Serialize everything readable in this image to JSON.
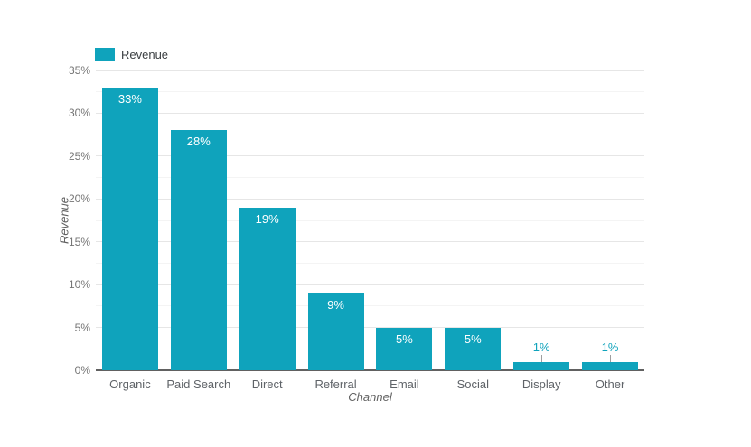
{
  "legend": {
    "series_label": "Revenue"
  },
  "axes": {
    "x_title": "Channel",
    "y_title": "Revenue",
    "y_tick_labels": [
      "0%",
      "5%",
      "10%",
      "15%",
      "20%",
      "25%",
      "30%",
      "35%"
    ]
  },
  "chart_data": {
    "type": "bar",
    "title": "",
    "categories": [
      "Organic",
      "Paid Search",
      "Direct",
      "Referral",
      "Email",
      "Social",
      "Display",
      "Other"
    ],
    "series": [
      {
        "name": "Revenue",
        "values": [
          33,
          28,
          19,
          9,
          5,
          5,
          1,
          1
        ],
        "labels": [
          "33%",
          "28%",
          "19%",
          "9%",
          "5%",
          "5%",
          "1%",
          "1%"
        ]
      }
    ],
    "xlabel": "Channel",
    "ylabel": "Revenue",
    "ylim": [
      0,
      35
    ],
    "y_major_step": 5,
    "y_minor_step": 2.5,
    "grid": "horizontal",
    "legend_position": "top-left",
    "outside_label_threshold": 2
  },
  "colors": {
    "bar": "#0FA3BC",
    "outside_label": "#0FA3BC",
    "inside_label": "#ffffff",
    "axis_line": "#616161",
    "grid_major": "#e6e6e6",
    "grid_minor": "#f4f4f4",
    "tick_label": "#757575",
    "category_label": "#5f6368",
    "axis_title": "#616161",
    "legend_text": "#3c4043",
    "annotation_stem": "#9e9e9e",
    "background": "#ffffff"
  }
}
